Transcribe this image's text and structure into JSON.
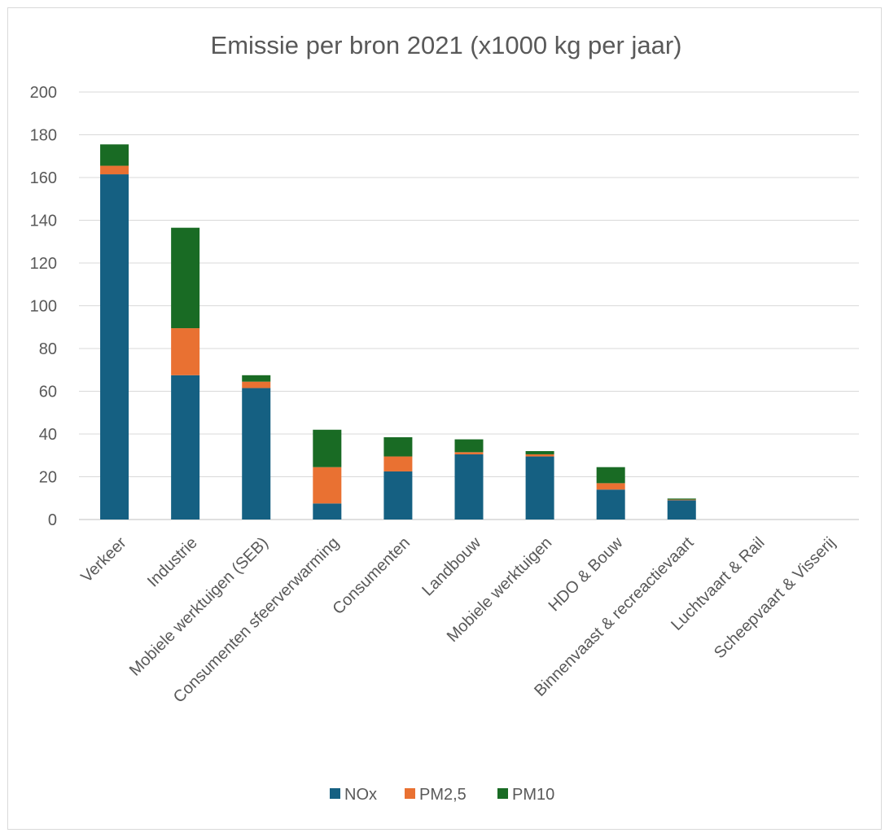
{
  "chart_data": {
    "type": "bar",
    "stacked": true,
    "title": "Emissie per bron 2021 (x1000 kg per jaar)",
    "xlabel": "",
    "ylabel": "",
    "ylim": [
      0,
      200
    ],
    "yticks": [
      0,
      20,
      40,
      60,
      80,
      100,
      120,
      140,
      160,
      180,
      200
    ],
    "grid": true,
    "legend_position": "bottom",
    "categories": [
      "Verkeer",
      "Industrie",
      "Mobiele werktuigen (SEB)",
      "Consumenten sfeerverwarming",
      "Consumenten",
      "Landbouw",
      "Mobiele werktuigen",
      "HDO & Bouw",
      "Binnenvaast & recreactievaart",
      "Luchtvaart & Rail",
      "Scheepvaart & Visserij"
    ],
    "series": [
      {
        "name": "NOx",
        "color": "#156082",
        "values": [
          161.5,
          67.5,
          61.5,
          7.5,
          22.5,
          30.5,
          29.5,
          14,
          9,
          0,
          0
        ]
      },
      {
        "name": "PM2,5",
        "color": "#E97132",
        "values": [
          4,
          22,
          3,
          17,
          7,
          1,
          1,
          3,
          0.3,
          0,
          0
        ]
      },
      {
        "name": "PM10",
        "color": "#196B24",
        "values": [
          10,
          47,
          3,
          17.5,
          9,
          6,
          1.5,
          7.5,
          0.5,
          0,
          0
        ]
      }
    ]
  }
}
